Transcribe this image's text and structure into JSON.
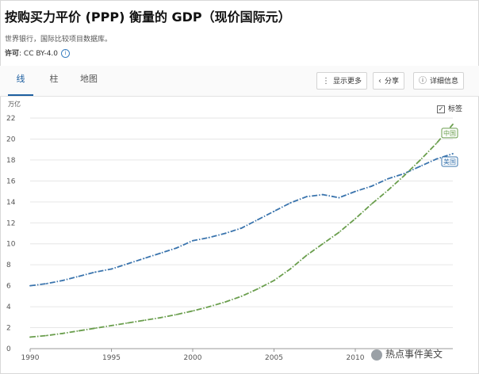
{
  "header": {
    "title": "按购买力平价 (PPP) 衡量的 GDP（现价国际元）",
    "source": "世界银行，国际比较项目数据库。",
    "license_label": "许可",
    "license_value": ": CC BY-4.0",
    "info_icon": "i"
  },
  "tabs": [
    {
      "label": "线",
      "active": true
    },
    {
      "label": "柱",
      "active": false
    },
    {
      "label": "地图",
      "active": false
    }
  ],
  "toolbar": {
    "more_label": "显示更多",
    "share_label": "分享",
    "detail_label": "详细信息"
  },
  "legend_toggle": {
    "label": "标签",
    "checked": true
  },
  "watermark": "热点事件美文",
  "colors": {
    "us": "#3a74ad",
    "china": "#6a9e4d",
    "grid": "#e6e6e6",
    "accent": "#1d5fa0"
  },
  "chart_data": {
    "type": "line",
    "title": "",
    "ylabel": "万亿",
    "xlabel": "",
    "xlim": [
      1990,
      2016
    ],
    "ylim": [
      0,
      22
    ],
    "x_ticks": [
      1990,
      1995,
      2000,
      2005,
      2010
    ],
    "y_ticks": [
      0,
      2,
      4,
      6,
      8,
      10,
      12,
      14,
      16,
      18,
      20,
      22
    ],
    "grid": true,
    "series": [
      {
        "name": "美国",
        "color": "#3a74ad",
        "x": [
          1990,
          1991,
          1992,
          1993,
          1994,
          1995,
          1996,
          1997,
          1998,
          1999,
          2000,
          2001,
          2002,
          2003,
          2004,
          2005,
          2006,
          2007,
          2008,
          2009,
          2010,
          2011,
          2012,
          2013,
          2014,
          2015,
          2016
        ],
        "values": [
          6.0,
          6.2,
          6.5,
          6.9,
          7.3,
          7.6,
          8.1,
          8.6,
          9.1,
          9.6,
          10.3,
          10.6,
          11.0,
          11.5,
          12.3,
          13.1,
          13.9,
          14.5,
          14.7,
          14.4,
          15.0,
          15.5,
          16.2,
          16.7,
          17.4,
          18.1,
          18.6
        ]
      },
      {
        "name": "中国",
        "color": "#6a9e4d",
        "x": [
          1990,
          1991,
          1992,
          1993,
          1994,
          1995,
          1996,
          1997,
          1998,
          1999,
          2000,
          2001,
          2002,
          2003,
          2004,
          2005,
          2006,
          2007,
          2008,
          2009,
          2010,
          2011,
          2012,
          2013,
          2014,
          2015,
          2016
        ],
        "values": [
          1.1,
          1.25,
          1.45,
          1.7,
          1.95,
          2.2,
          2.45,
          2.7,
          2.95,
          3.25,
          3.6,
          4.0,
          4.45,
          5.0,
          5.7,
          6.5,
          7.6,
          8.9,
          10.0,
          11.1,
          12.4,
          13.8,
          15.1,
          16.5,
          18.0,
          19.6,
          21.4
        ]
      }
    ]
  }
}
